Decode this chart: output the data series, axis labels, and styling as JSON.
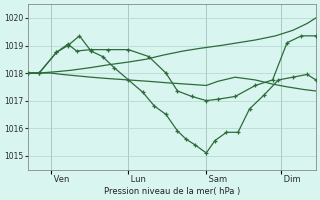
{
  "bg_color": "#d8f5ef",
  "grid_color": "#b0d8ce",
  "line_color": "#2d6b3a",
  "ylim": [
    1014.5,
    1020.5
  ],
  "yticks": [
    1015,
    1016,
    1017,
    1018,
    1019,
    1020
  ],
  "xlabel": "Pression niveau de la mer( hPa )",
  "day_labels": [
    " Ven",
    " Lun",
    " Sam",
    " Dim"
  ],
  "day_positions": [
    0.08,
    0.35,
    0.62,
    0.88
  ],
  "xlim": [
    0.0,
    1.0
  ],
  "s1_x": [
    0.0,
    0.04,
    0.1,
    0.15,
    0.22,
    0.28,
    0.35,
    0.41,
    0.47,
    0.54,
    0.6,
    0.67,
    0.73,
    0.79,
    0.86,
    0.92,
    0.97,
    1.0
  ],
  "s1_y": [
    1018.0,
    1018.0,
    1018.05,
    1018.1,
    1018.2,
    1018.3,
    1018.4,
    1018.5,
    1018.65,
    1018.8,
    1018.9,
    1019.0,
    1019.1,
    1019.2,
    1019.35,
    1019.55,
    1019.8,
    1020.0
  ],
  "s2_x": [
    0.0,
    0.04,
    0.1,
    0.14,
    0.17,
    0.22,
    0.28,
    0.35,
    0.42,
    0.48,
    0.52,
    0.57,
    0.62,
    0.66,
    0.72,
    0.79,
    0.85,
    0.9,
    0.95,
    1.0
  ],
  "s2_y": [
    1018.0,
    1018.0,
    1018.75,
    1019.05,
    1018.8,
    1018.85,
    1018.85,
    1018.85,
    1018.6,
    1018.0,
    1017.35,
    1017.15,
    1017.0,
    1017.05,
    1017.15,
    1017.55,
    1017.75,
    1019.1,
    1019.35,
    1019.35
  ],
  "s3_x": [
    0.0,
    0.04,
    0.1,
    0.14,
    0.18,
    0.22,
    0.26,
    0.3,
    0.35,
    0.4,
    0.44,
    0.48,
    0.52,
    0.55,
    0.58,
    0.62,
    0.65,
    0.69,
    0.73,
    0.77,
    0.82,
    0.87,
    0.92,
    0.97,
    1.0
  ],
  "s3_y": [
    1018.0,
    1018.0,
    1018.75,
    1019.0,
    1019.35,
    1018.8,
    1018.6,
    1018.2,
    1017.75,
    1017.3,
    1016.8,
    1016.5,
    1015.9,
    1015.6,
    1015.4,
    1015.1,
    1015.55,
    1015.85,
    1015.85,
    1016.7,
    1017.2,
    1017.75,
    1017.85,
    1017.95,
    1017.75
  ],
  "s4_x": [
    0.0,
    0.04,
    0.08,
    0.12,
    0.17,
    0.22,
    0.28,
    0.35,
    0.42,
    0.48,
    0.55,
    0.62,
    0.66,
    0.72,
    0.79,
    0.85,
    0.9,
    0.96,
    1.0
  ],
  "s4_y": [
    1018.0,
    1018.0,
    1018.0,
    1017.95,
    1017.9,
    1017.85,
    1017.8,
    1017.75,
    1017.7,
    1017.65,
    1017.6,
    1017.55,
    1017.7,
    1017.85,
    1017.75,
    1017.6,
    1017.5,
    1017.4,
    1017.35
  ]
}
